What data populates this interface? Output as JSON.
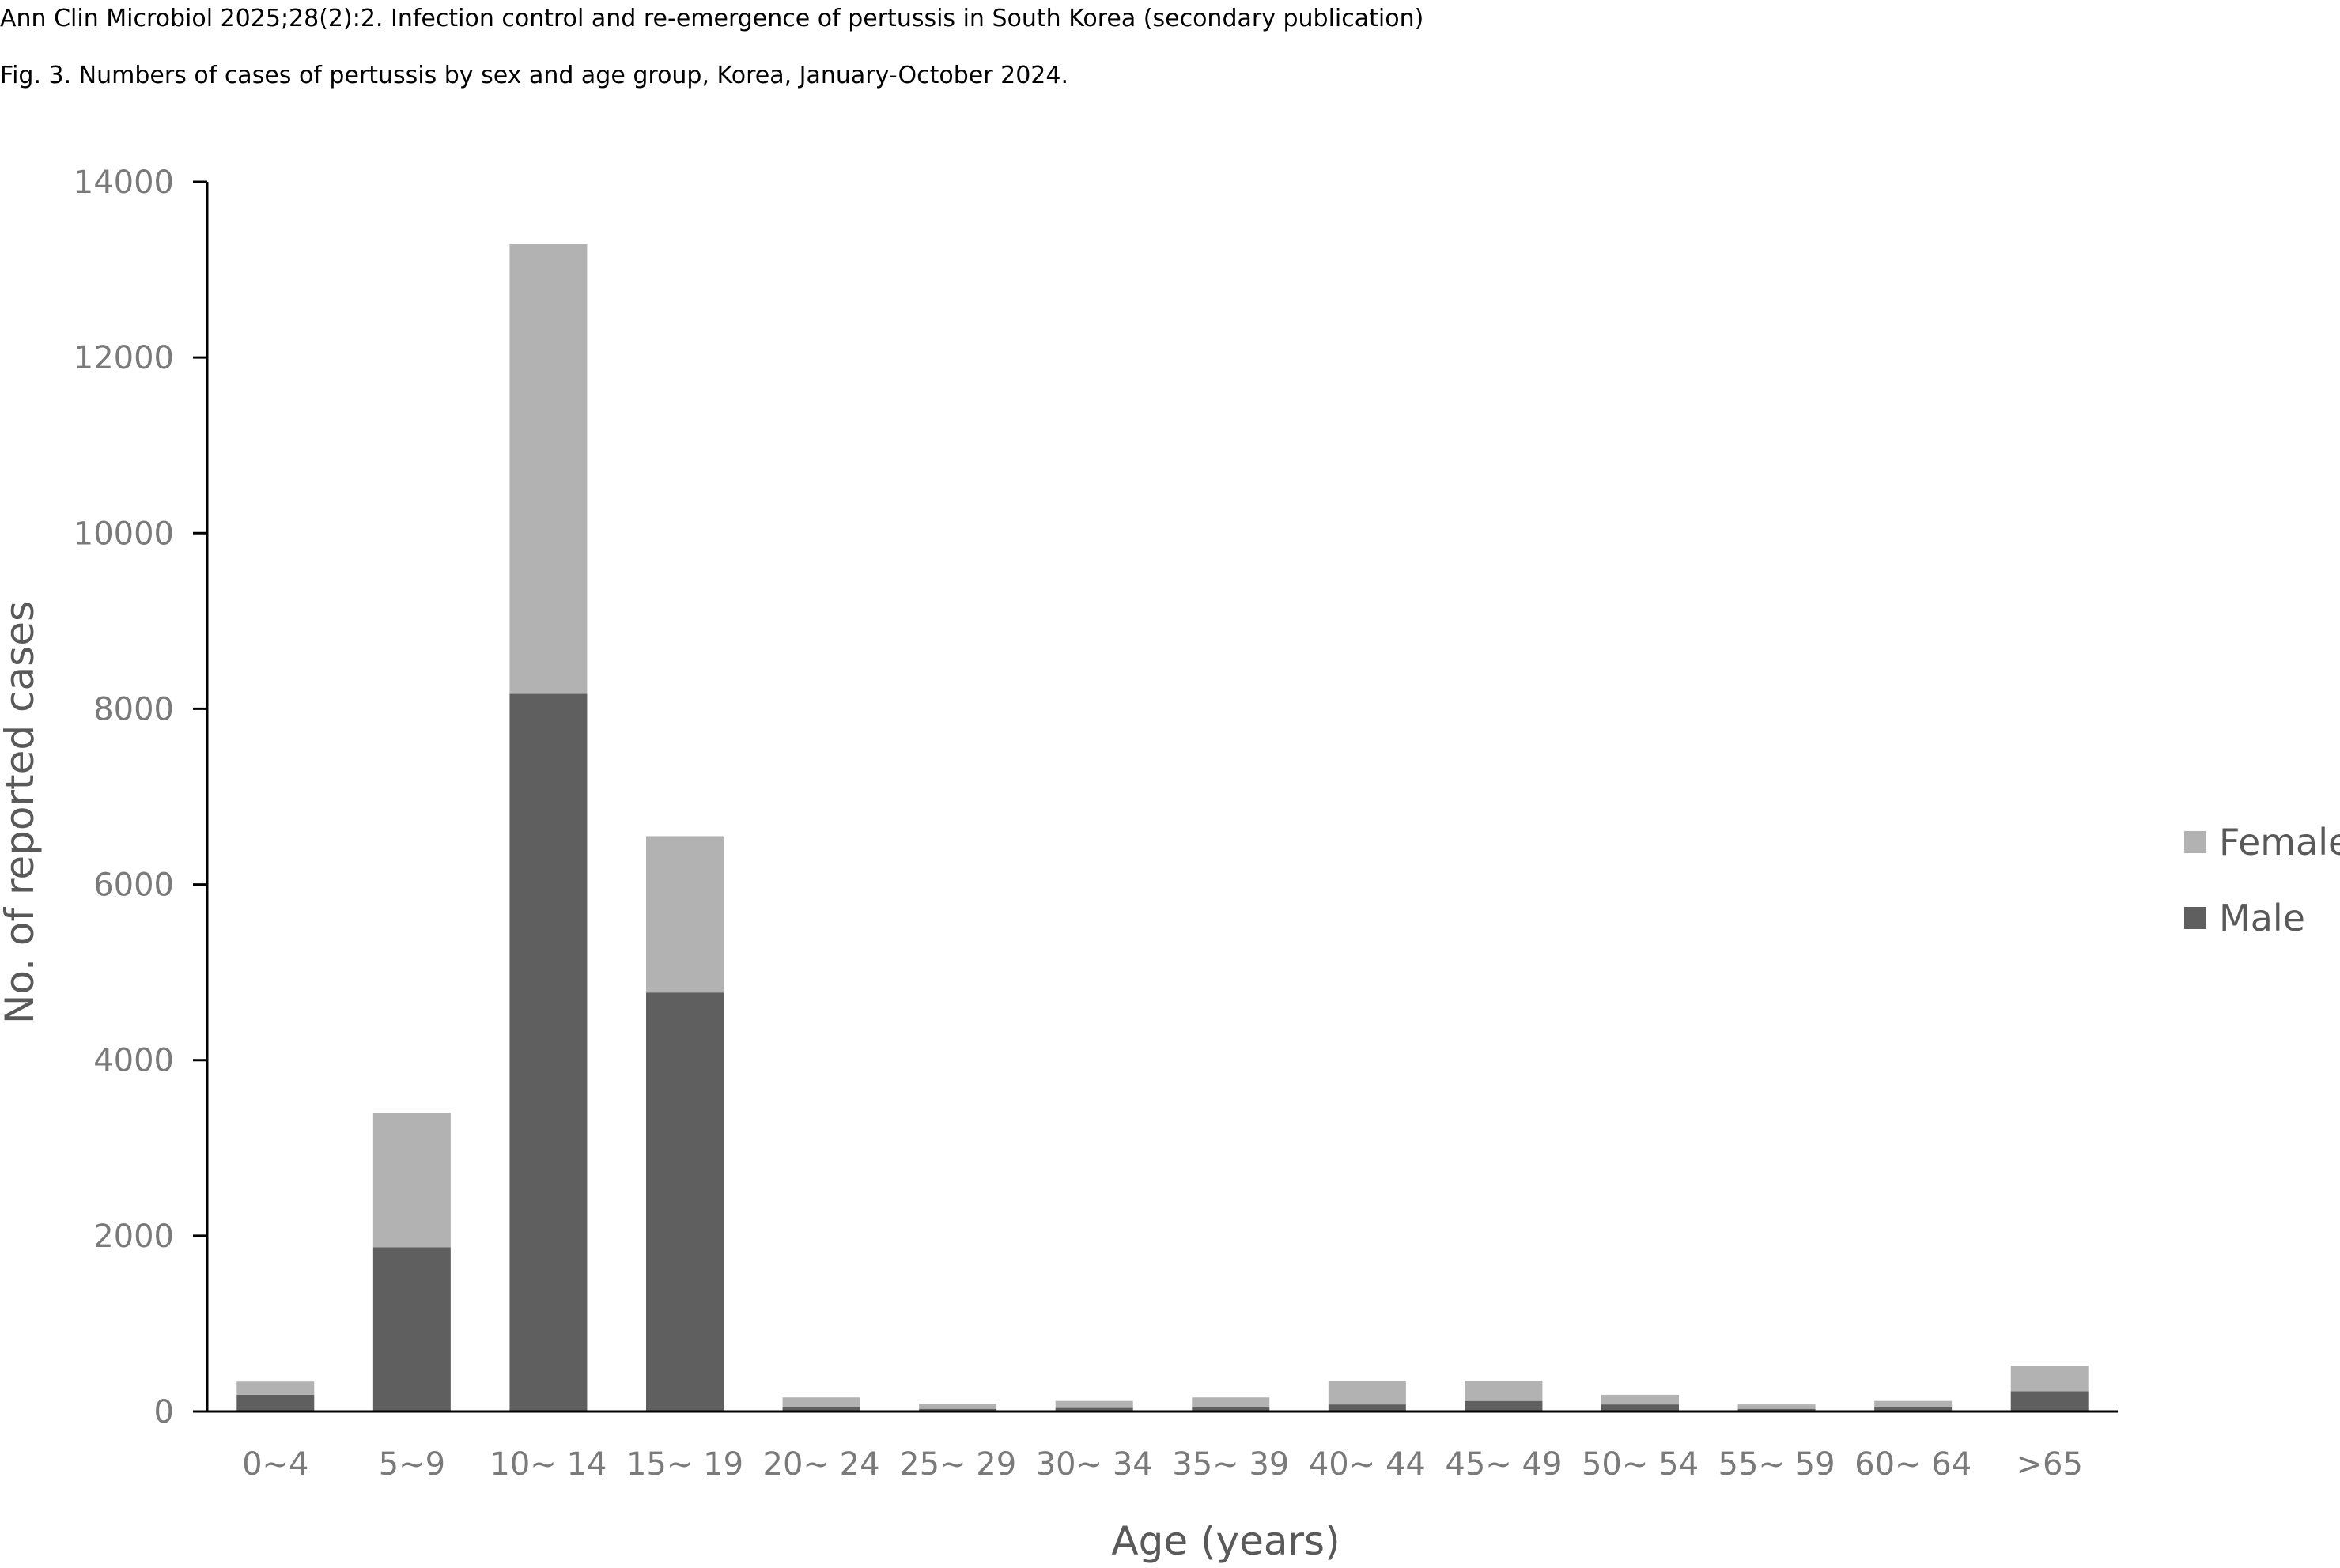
{
  "header": {
    "citation": "Ann Clin Microbiol 2025;28(2):2. Infection control and re-emergence of pertussis in South Korea (secondary publication)",
    "figure_caption": "Fig. 3. Numbers of cases of pertussis by sex and age group, Korea, January-October 2024."
  },
  "chart_data": {
    "type": "bar",
    "stacked": true,
    "categories": [
      "0~4",
      "5~9",
      "10~ 14",
      "15~ 19",
      "20~ 24",
      "25~ 29",
      "30~ 34",
      "35~ 39",
      "40~ 44",
      "45~ 49",
      "50~ 54",
      "55~ 59",
      "60~ 64",
      ">65"
    ],
    "series": [
      {
        "name": "Male",
        "color": "#5f5f5f",
        "values": [
          190,
          1870,
          8170,
          4770,
          50,
          30,
          40,
          50,
          80,
          120,
          80,
          30,
          50,
          230
        ]
      },
      {
        "name": "Female",
        "color": "#b2b2b2",
        "values": [
          150,
          1530,
          5120,
          1780,
          110,
          60,
          80,
          110,
          270,
          230,
          110,
          50,
          70,
          290
        ]
      }
    ],
    "xlabel": "Age (years)",
    "ylabel": "No. of reported cases",
    "ylim": [
      0,
      14000
    ],
    "yticks": [
      0,
      2000,
      4000,
      6000,
      8000,
      10000,
      12000,
      14000
    ],
    "grid": false,
    "legend": {
      "position": "right",
      "order": [
        "Female",
        "Male"
      ]
    }
  }
}
